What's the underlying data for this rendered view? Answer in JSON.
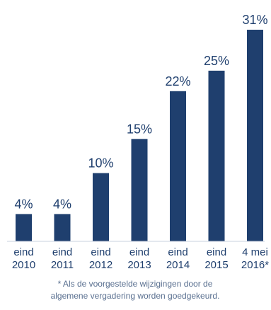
{
  "chart_data": {
    "type": "bar",
    "categories": [
      [
        "eind",
        "2010"
      ],
      [
        "eind",
        "2011"
      ],
      [
        "eind",
        "2012"
      ],
      [
        "eind",
        "2013"
      ],
      [
        "eind",
        "2014"
      ],
      [
        "eind",
        "2015"
      ],
      [
        "4 mei",
        "2016*"
      ]
    ],
    "values": [
      4,
      4,
      10,
      15,
      22,
      25,
      31
    ],
    "value_labels": [
      "4%",
      "4%",
      "10%",
      "15%",
      "22%",
      "25%",
      "31%"
    ],
    "ylim": [
      0,
      31
    ],
    "grid": false,
    "bar_color": "#1f3f6e",
    "text_color": "#1f3f6e",
    "baseline_color": "#c8d2df"
  },
  "footnote": {
    "line1": "* Als de voorgestelde wijzigingen door de",
    "line2": "algemene vergadering worden goedgekeurd."
  }
}
